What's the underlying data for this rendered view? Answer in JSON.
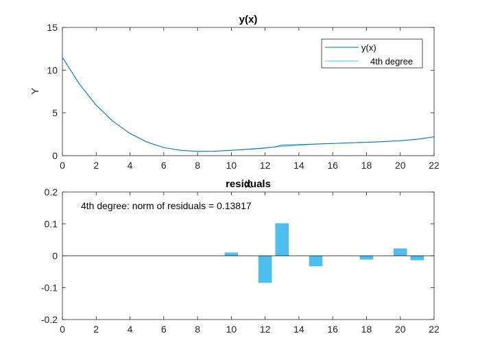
{
  "chart_data": [
    {
      "type": "line",
      "title": "y(x)",
      "xlabel": "X",
      "ylabel": "Y",
      "xlim": [
        0,
        22
      ],
      "ylim": [
        0,
        15
      ],
      "xticks": [
        "0",
        "2",
        "4",
        "6",
        "8",
        "10",
        "12",
        "14",
        "16",
        "18",
        "20",
        "22"
      ],
      "yticks": [
        "0",
        "5",
        "10",
        "15"
      ],
      "grid": false,
      "legend_position": "top-right",
      "series": [
        {
          "name": "y(x)",
          "color": "#0072BD",
          "x": [
            0,
            1,
            2,
            3,
            4,
            5,
            6,
            7,
            8,
            9,
            10,
            11,
            12,
            12.5,
            13,
            14,
            15,
            16,
            17,
            18,
            19,
            20,
            21,
            22
          ],
          "y": [
            11.5,
            8.4,
            5.9,
            4.0,
            2.6,
            1.6,
            0.95,
            0.62,
            0.5,
            0.52,
            0.62,
            0.75,
            0.88,
            1.0,
            1.22,
            1.28,
            1.36,
            1.43,
            1.5,
            1.56,
            1.64,
            1.75,
            1.92,
            2.2
          ]
        },
        {
          "name": "4th degree",
          "color": "#4DBEEE",
          "x": [
            0,
            1,
            2,
            3,
            4,
            5,
            6,
            7,
            8,
            9,
            10,
            11,
            12,
            13,
            14,
            15,
            16,
            17,
            18,
            19,
            20,
            21,
            22
          ],
          "y": [
            11.5,
            8.4,
            5.9,
            4.0,
            2.6,
            1.6,
            0.95,
            0.62,
            0.5,
            0.52,
            0.63,
            0.77,
            0.92,
            1.08,
            1.22,
            1.33,
            1.42,
            1.5,
            1.57,
            1.65,
            1.76,
            1.93,
            2.2
          ]
        }
      ]
    },
    {
      "type": "bar",
      "title": "residuals",
      "xlim": [
        0,
        22
      ],
      "ylim": [
        -0.2,
        0.2
      ],
      "xticks": [
        "0",
        "2",
        "4",
        "6",
        "8",
        "10",
        "12",
        "14",
        "16",
        "18",
        "20",
        "22"
      ],
      "yticks": [
        "-0.2",
        "-0.1",
        "0",
        "0.1",
        "0.2"
      ],
      "grid": false,
      "annotation": "4th degree: norm of residuals = 0.13817",
      "color": "#4DBEEE",
      "x": [
        10,
        12,
        13,
        15,
        18,
        20,
        21
      ],
      "values": [
        0.01,
        -0.085,
        0.102,
        -0.033,
        -0.012,
        0.023,
        -0.014
      ]
    }
  ]
}
